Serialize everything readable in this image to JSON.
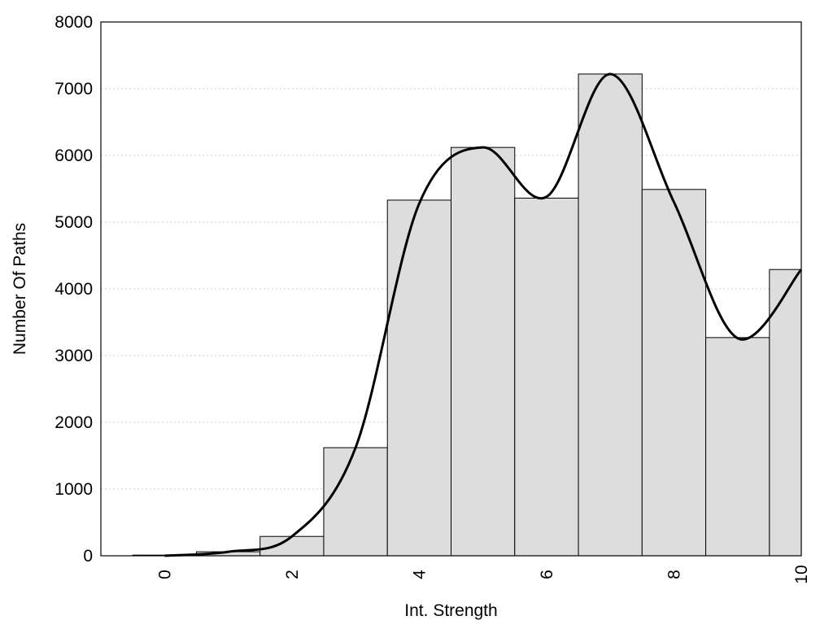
{
  "chart_data": {
    "type": "bar",
    "xlabel": "Int. Strength",
    "ylabel": "Number Of Paths",
    "xlim": [
      -1,
      10
    ],
    "ylim": [
      0,
      8000
    ],
    "x_ticks": [
      "0",
      "2",
      "4",
      "6",
      "8",
      "10"
    ],
    "x_tick_values": [
      0,
      2,
      4,
      6,
      8,
      10
    ],
    "y_ticks": [
      "0",
      "1000",
      "2000",
      "3000",
      "4000",
      "5000",
      "6000",
      "7000",
      "8000"
    ],
    "y_tick_values": [
      0,
      1000,
      2000,
      3000,
      4000,
      5000,
      6000,
      7000,
      8000
    ],
    "grid": "horizontal dotted",
    "bar_fill": "#dddddd",
    "bar_stroke": "#000000",
    "curve_color": "#000000",
    "series": [
      {
        "type": "histogram",
        "bins": [
          {
            "from": -0.5,
            "to": 0.5,
            "value": 10
          },
          {
            "from": 0.5,
            "to": 1.5,
            "value": 60
          },
          {
            "from": 1.5,
            "to": 2.5,
            "value": 290
          },
          {
            "from": 2.5,
            "to": 3.5,
            "value": 1620
          },
          {
            "from": 3.5,
            "to": 4.5,
            "value": 5330
          },
          {
            "from": 4.5,
            "to": 5.5,
            "value": 6120
          },
          {
            "from": 5.5,
            "to": 6.5,
            "value": 5360
          },
          {
            "from": 6.5,
            "to": 7.5,
            "value": 7220
          },
          {
            "from": 7.5,
            "to": 8.5,
            "value": 5490
          },
          {
            "from": 8.5,
            "to": 9.5,
            "value": 3270
          },
          {
            "from": 9.5,
            "to": 10,
            "value": 4290
          }
        ]
      },
      {
        "type": "line",
        "smooth": true,
        "points": [
          [
            0,
            0
          ],
          [
            1,
            60
          ],
          [
            2,
            290
          ],
          [
            3,
            1620
          ],
          [
            4,
            5280
          ],
          [
            5,
            6120
          ],
          [
            6,
            5380
          ],
          [
            7,
            7220
          ],
          [
            8,
            5300
          ],
          [
            9,
            3260
          ],
          [
            10,
            4290
          ]
        ]
      }
    ]
  }
}
